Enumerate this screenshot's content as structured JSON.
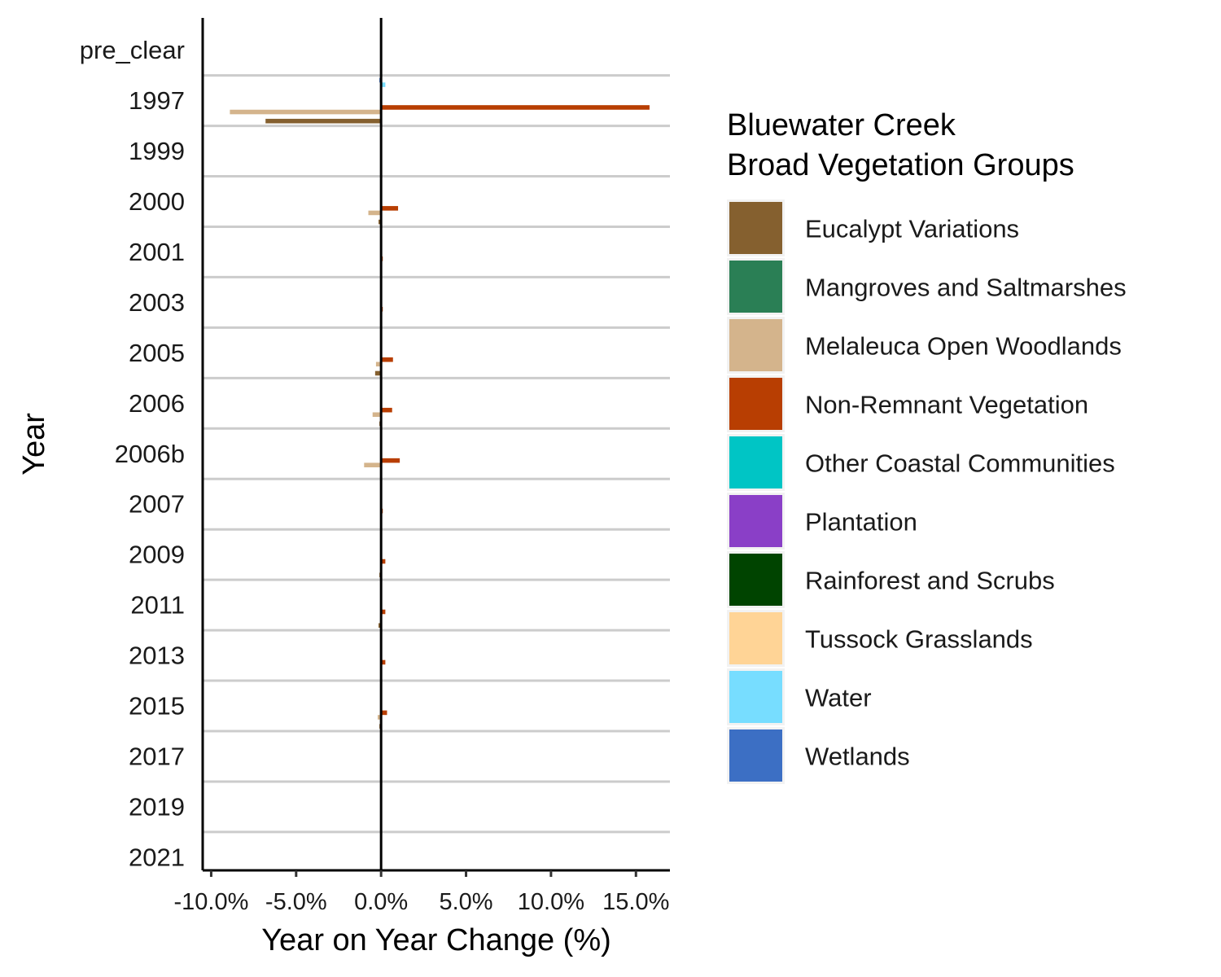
{
  "chart_data": {
    "type": "bar",
    "orientation": "horizontal",
    "xlabel": "Year on Year Change (%)",
    "ylabel": "Year",
    "xlim": [
      -10.5,
      17
    ],
    "x_ticks": [
      -10,
      -5,
      0,
      5,
      10,
      15
    ],
    "x_tick_labels": [
      "-10.0%",
      "-5.0%",
      "0.0%",
      "5.0%",
      "10.0%",
      "15.0%"
    ],
    "categories": [
      "pre_clear",
      "1997",
      "1999",
      "2000",
      "2001",
      "2003",
      "2005",
      "2006",
      "2006b",
      "2007",
      "2009",
      "2011",
      "2013",
      "2015",
      "2017",
      "2019",
      "2021"
    ],
    "legend": {
      "title_line1": "Bluewater Creek",
      "title_line2": "Broad Vegetation Groups",
      "position": "right"
    },
    "grid": "horizontal lines between categories",
    "series": [
      {
        "name": "Eucalypt Variations",
        "color": "#85602F",
        "values": [
          0,
          -6.8,
          0,
          -0.15,
          0,
          0,
          -0.35,
          -0.1,
          -0.05,
          0,
          -0.1,
          -0.15,
          -0.05,
          -0.1,
          0,
          0,
          0
        ]
      },
      {
        "name": "Mangroves and Saltmarshes",
        "color": "#2A7F55",
        "values": [
          0,
          0,
          0,
          0,
          0,
          0,
          0,
          0,
          0,
          0,
          0,
          0,
          0,
          0,
          0,
          0,
          0
        ]
      },
      {
        "name": "Melaleuca Open Woodlands",
        "color": "#D4B48C",
        "values": [
          0,
          -8.9,
          0,
          -0.75,
          0,
          0,
          -0.3,
          -0.5,
          -1.0,
          0,
          0,
          0,
          0,
          -0.2,
          0,
          0,
          0
        ]
      },
      {
        "name": "Non-Remnant Vegetation",
        "color": "#B83E02",
        "values": [
          0,
          15.8,
          0,
          1.0,
          0.1,
          0.1,
          0.7,
          0.65,
          1.1,
          0.1,
          0.25,
          0.25,
          0.25,
          0.35,
          0,
          0,
          0
        ]
      },
      {
        "name": "Other Coastal Communities",
        "color": "#00C5C5",
        "values": [
          0,
          0,
          0,
          0,
          0,
          0,
          0,
          0,
          0,
          0,
          0,
          0,
          0,
          0,
          0,
          0,
          0
        ]
      },
      {
        "name": "Plantation",
        "color": "#8A3FC7",
        "values": [
          0,
          0,
          0,
          0,
          0,
          0,
          0,
          0,
          0,
          0,
          0,
          0,
          0,
          0,
          0,
          0,
          0
        ]
      },
      {
        "name": "Rainforest and Scrubs",
        "color": "#004400",
        "values": [
          0,
          0,
          0,
          0,
          0,
          0,
          0,
          0,
          0,
          0,
          0,
          0,
          0,
          0,
          0,
          0,
          0
        ]
      },
      {
        "name": "Tussock Grasslands",
        "color": "#FFD496",
        "values": [
          0,
          0,
          0,
          0,
          0,
          0,
          0,
          0,
          0,
          0,
          0,
          0,
          0,
          0,
          0,
          0,
          0
        ]
      },
      {
        "name": "Water",
        "color": "#77DDFF",
        "values": [
          0,
          0.25,
          0,
          0,
          0,
          0,
          0,
          0,
          0,
          0,
          0,
          0,
          0,
          0,
          0,
          0,
          0
        ]
      },
      {
        "name": "Wetlands",
        "color": "#3C6FC4",
        "values": [
          0,
          -0.1,
          0,
          0,
          0,
          0,
          0,
          0,
          0,
          0,
          0,
          0,
          0,
          0,
          0,
          0,
          0
        ]
      }
    ]
  }
}
